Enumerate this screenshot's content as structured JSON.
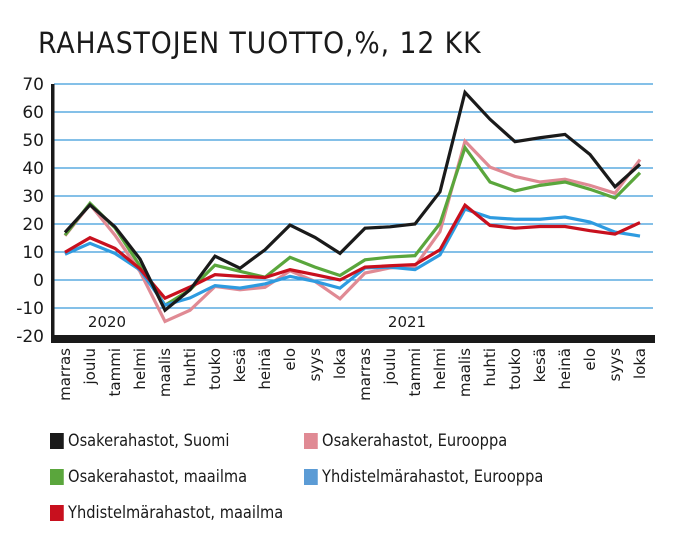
{
  "chart_data": {
    "type": "line",
    "title": "RAHASTOJEN TUOTTO,%, 12 KK",
    "xlabel": "",
    "ylabel": "",
    "ylim": [
      -20,
      70
    ],
    "yticks": [
      70,
      60,
      50,
      40,
      30,
      20,
      10,
      0,
      -10,
      -20
    ],
    "grid": true,
    "legend_position": "bottom",
    "year_labels": [
      {
        "label": "2020",
        "at_index": 2
      },
      {
        "label": "2021",
        "at_index": 14
      }
    ],
    "categories": [
      "marras",
      "joulu",
      "tammi",
      "helmi",
      "maalis",
      "huhti",
      "touko",
      "kesä",
      "heinä",
      "elo",
      "syys",
      "loka",
      "marras",
      "joulu",
      "tammi",
      "helmi",
      "maalis",
      "huhti",
      "touko",
      "kesä",
      "heinä",
      "elo",
      "syys",
      "loka"
    ],
    "series": [
      {
        "name": "Osakerahastot, Eurooppa",
        "color": "#e08a94",
        "values": [
          15.8,
          27,
          16,
          3,
          -14.8,
          -10.8,
          -2.3,
          -3.5,
          -2.6,
          3.3,
          -0.5,
          -6.7,
          2.5,
          4.3,
          4.9,
          17.3,
          49.6,
          40.3,
          37,
          35,
          36,
          33.8,
          31,
          43
        ]
      },
      {
        "name": "Osakerahastot, maailma",
        "color": "#5aa63c",
        "values": [
          16,
          27.4,
          18.6,
          5,
          -9,
          -3.5,
          5.3,
          3.1,
          1,
          8.1,
          4.6,
          1.6,
          7.2,
          8.2,
          8.7,
          20.2,
          47.3,
          35,
          31.8,
          33.8,
          35,
          32.4,
          29.3,
          38.3
        ]
      },
      {
        "name": "Yhdistelmärahastot, Eurooppa",
        "color": "#2e9be0",
        "values": [
          9.2,
          13.1,
          9.5,
          3.6,
          -9,
          -6.4,
          -2,
          -2.9,
          -1.4,
          1.3,
          -0.5,
          -2.9,
          4.3,
          4.6,
          3.7,
          9,
          25.3,
          22.3,
          21.7,
          21.7,
          22.5,
          20.7,
          17.1,
          15.7
        ]
      },
      {
        "name": "Yhdistelmärahastot, maailma",
        "color": "#c8101e",
        "values": [
          9.9,
          15.1,
          11.3,
          4,
          -6.5,
          -2.5,
          1.9,
          1.3,
          0.9,
          3.7,
          1.9,
          0,
          4.6,
          5.1,
          5.5,
          10.8,
          26.7,
          19.5,
          18.5,
          19.1,
          19.1,
          17.6,
          16.4,
          20.5
        ]
      },
      {
        "name": "Osakerahastot, Suomi",
        "color": "#1a1a1a",
        "values": [
          17,
          26.8,
          19,
          7.5,
          -10.8,
          -3.5,
          8.5,
          4.2,
          10.8,
          19.6,
          15.2,
          9.5,
          18.5,
          19,
          20,
          31.5,
          67,
          57.4,
          49.4,
          50.8,
          52,
          44.8,
          33.3,
          41.3
        ]
      }
    ]
  },
  "legend": [
    {
      "label": "Osakerahastot, Suomi",
      "color": "#1a1a1a"
    },
    {
      "label": "Osakerahastot, Eurooppa",
      "color": "#e08a94"
    },
    {
      "label": "Osakerahastot, maailma",
      "color": "#5aa63c"
    },
    {
      "label": "Yhdistelmärahastot, Eurooppa",
      "color": "#5b9bd5"
    },
    {
      "label": "Yhdistelmärahastot, maailma",
      "color": "#c8101e"
    }
  ],
  "colors": {
    "gridline": "#3a9ad9",
    "axis": "#1a1a1a"
  }
}
